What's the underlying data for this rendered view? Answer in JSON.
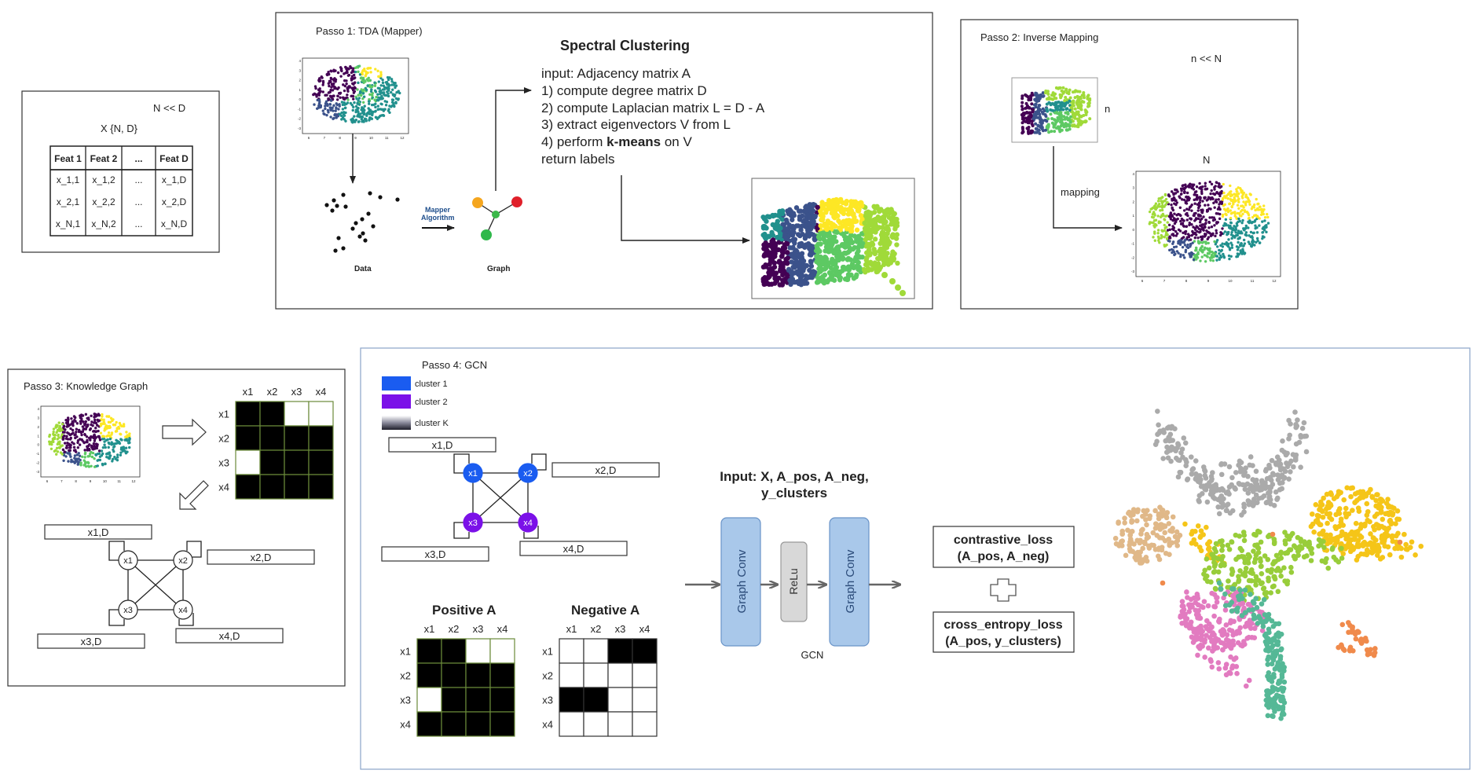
{
  "colors": {
    "viridis": [
      "#440154",
      "#3b528b",
      "#21908d",
      "#5dc963",
      "#a0da39",
      "#fde725"
    ],
    "cluster1": "#1a5cf0",
    "cluster2": "#7b11e8",
    "graph_conv_fill": "#a9c8ea",
    "relu_fill": "#d8d8d8",
    "scatter": [
      "#aaaaaa",
      "#f5c518",
      "#e0b888",
      "#98cd3a",
      "#e27bc0",
      "#55b896",
      "#f08a4b"
    ]
  },
  "input_table": {
    "nd_label": "N << D",
    "x_label": "X {N, D}",
    "headers": [
      "Feat 1",
      "Feat 2",
      "...",
      "Feat D"
    ],
    "rows": [
      [
        "x_1,1",
        "x_1,2",
        "...",
        "x_1,D"
      ],
      [
        "x_2,1",
        "x_2,2",
        "...",
        "x_2,D"
      ],
      [
        "x_N,1",
        "x_N,2",
        "...",
        "x_N,D"
      ]
    ]
  },
  "step1": {
    "title": "Passo 1: TDA (Mapper)",
    "spectral_title": "Spectral Clustering",
    "algo_lines": [
      "input: Adjacency matrix A",
      "1) compute degree matrix D",
      "2) compute Laplacian matrix L = D - A",
      "3) extract eigenvectors V from L"
    ],
    "algo_line4_pre": "4) perform ",
    "algo_line4_bold": "k-means",
    "algo_line4_post": " on V",
    "algo_last": "return labels",
    "data_label": "Data",
    "graph_label": "Graph",
    "mapper_label_1": "Mapper",
    "mapper_label_2": "Algorithm"
  },
  "step2": {
    "title": "Passo 2: Inverse Mapping",
    "n_lt_N": "n << N",
    "n_label": "n",
    "N_label": "N",
    "mapping_label": "mapping"
  },
  "step3": {
    "title": "Passo 3: Knowledge Graph",
    "matrix_headers": [
      "x1",
      "x2",
      "x3",
      "x4"
    ],
    "matrix": [
      [
        1,
        1,
        0,
        0
      ],
      [
        1,
        1,
        1,
        1
      ],
      [
        0,
        1,
        1,
        1
      ],
      [
        1,
        1,
        1,
        1
      ]
    ],
    "nodes": [
      "x1",
      "x2",
      "x3",
      "x4"
    ],
    "node_features": [
      "x1,D",
      "x2,D",
      "x3,D",
      "x4,D"
    ]
  },
  "step4": {
    "title": "Passo 4: GCN",
    "legend": [
      "cluster 1",
      "cluster 2",
      "cluster K"
    ],
    "nodes": [
      "x1",
      "x2",
      "x3",
      "x4"
    ],
    "node_features": [
      "x1,D",
      "x2,D",
      "x3,D",
      "x4,D"
    ],
    "input_line1": "Input: X, A_pos, A_neg,",
    "input_line2": "y_clusters",
    "graph_conv_label": "Graph Conv",
    "relu_label": "ReLu",
    "gcn_label": "GCN",
    "positive_title": "Positive A",
    "negative_title": "Negative A",
    "matrix_headers": [
      "x1",
      "x2",
      "x3",
      "x4"
    ],
    "positive_matrix": [
      [
        1,
        1,
        0,
        0
      ],
      [
        1,
        1,
        1,
        1
      ],
      [
        0,
        1,
        1,
        1
      ],
      [
        1,
        1,
        1,
        1
      ]
    ],
    "negative_matrix": [
      [
        0,
        0,
        1,
        1
      ],
      [
        0,
        0,
        0,
        0
      ],
      [
        1,
        1,
        0,
        0
      ],
      [
        0,
        0,
        0,
        0
      ]
    ],
    "loss1_line1": "contrastive_loss",
    "loss1_line2": "(A_pos, A_neg)",
    "loss2_line1": "cross_entropy_loss",
    "loss2_line2": "(A_pos, y_clusters)"
  },
  "plots": {
    "small_x_ticks": [
      "6",
      "7",
      "8",
      "9",
      "10",
      "11",
      "12"
    ],
    "small_y_ticks": [
      "4",
      "3",
      "2",
      "1",
      "0",
      "-1",
      "-2",
      "-3"
    ]
  }
}
